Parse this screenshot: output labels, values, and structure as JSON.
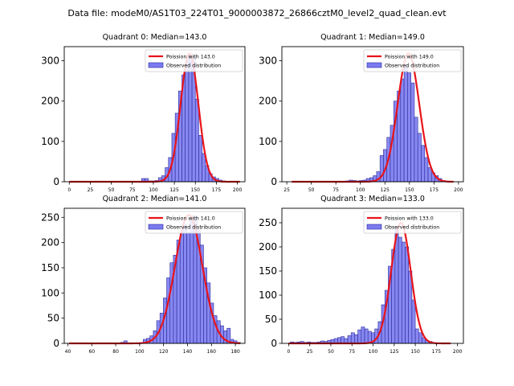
{
  "suptitle": "Data file: modeM0/AS1T03_224T01_9000003872_26866cztM0_level2_quad_clean.evt",
  "colors": {
    "hist_face": "#7b7bf0",
    "hist_edge": "#2b2b9e",
    "curve": "#e8141a",
    "axis": "#000000"
  },
  "chart_data": [
    {
      "type": "bar",
      "title": "Quadrant 0: Median=143.0",
      "legend": [
        "Poission with 143.0",
        "Observed distribution"
      ],
      "legend_loc": "upper right",
      "xlim": [
        -6,
        209
      ],
      "ylim": [
        0,
        335
      ],
      "xticks": [
        0,
        25,
        50,
        75,
        100,
        125,
        150,
        175,
        200
      ],
      "yticks": [
        0,
        100,
        200,
        300
      ],
      "bin_width": 4,
      "bins_start": [
        86,
        90,
        94,
        98,
        102,
        106,
        110,
        114,
        118,
        122,
        126,
        130,
        134,
        138,
        142,
        146,
        150,
        154,
        158,
        162,
        166,
        170,
        174,
        178,
        182
      ],
      "counts": [
        8,
        8,
        2,
        2,
        3,
        10,
        15,
        35,
        60,
        120,
        170,
        225,
        265,
        300,
        315,
        310,
        205,
        115,
        70,
        40,
        20,
        12,
        8,
        4,
        2
      ],
      "curve": {
        "mu": 143,
        "sigma": 10.6,
        "peak": 318,
        "x_range": [
          0,
          203
        ]
      }
    },
    {
      "type": "bar",
      "title": "Quadrant 1: Median=149.0",
      "legend": [
        "Poission with 149.0",
        "Observed distribution"
      ],
      "legend_loc": "upper right",
      "xlim": [
        20,
        205
      ],
      "ylim": [
        0,
        335
      ],
      "xticks": [
        25,
        50,
        75,
        100,
        125,
        150,
        175,
        200
      ],
      "yticks": [
        0,
        100,
        200,
        300
      ],
      "bin_width": 3.5,
      "bins_start": [
        85,
        88.5,
        92,
        95.5,
        99,
        102.5,
        106,
        109.5,
        113,
        116.5,
        120,
        123.5,
        127,
        130.5,
        134,
        137.5,
        141,
        144.5,
        148,
        151.5,
        155,
        158.5,
        162,
        165.5,
        169,
        172.5,
        176,
        179.5,
        183
      ],
      "counts": [
        2,
        4,
        3,
        2,
        3,
        4,
        8,
        10,
        15,
        25,
        65,
        80,
        110,
        140,
        200,
        225,
        255,
        290,
        270,
        245,
        160,
        120,
        90,
        60,
        35,
        22,
        15,
        8,
        3
      ],
      "curve": {
        "mu": 149,
        "sigma": 11.0,
        "peak": 318,
        "x_range": [
          30,
          195
        ]
      }
    },
    {
      "type": "bar",
      "title": "Quadrant 2: Median=141.0",
      "legend": [
        "Poission with 141.0",
        "Observed distribution"
      ],
      "legend_loc": "upper right",
      "xlim": [
        37,
        188
      ],
      "ylim": [
        0,
        268
      ],
      "xticks": [
        40,
        60,
        80,
        100,
        120,
        140,
        160,
        180
      ],
      "yticks": [
        0,
        50,
        100,
        150,
        200,
        250
      ],
      "bin_width": 2.8,
      "bins_start": [
        84,
        86.8,
        103,
        105.8,
        108.6,
        111.4,
        114.2,
        117,
        119.8,
        122.6,
        125.4,
        128.2,
        131,
        133.8,
        136.6,
        139.4,
        142.2,
        145,
        147.8,
        150.6,
        153.4,
        156.2,
        159,
        161.8,
        164.6,
        167.4,
        170.2,
        173,
        175.8,
        178.6,
        181.4
      ],
      "counts": [
        2,
        5,
        8,
        10,
        15,
        25,
        45,
        60,
        90,
        130,
        160,
        175,
        205,
        220,
        235,
        220,
        245,
        250,
        225,
        195,
        150,
        120,
        80,
        55,
        45,
        35,
        25,
        30,
        8,
        5,
        2
      ],
      "curve": {
        "mu": 141,
        "sigma": 11.4,
        "peak": 255,
        "x_range": [
          41,
          184
        ]
      }
    },
    {
      "type": "bar",
      "title": "Quadrant 3: Median=133.0",
      "legend": [
        "Poission with 133.0",
        "Observed distribution"
      ],
      "legend_loc": "upper right",
      "xlim": [
        -8,
        207
      ],
      "ylim": [
        0,
        280
      ],
      "xticks": [
        0,
        25,
        50,
        75,
        100,
        125,
        150,
        175,
        200
      ],
      "yticks": [
        0,
        50,
        100,
        150,
        200,
        250
      ],
      "bin_width": 4,
      "bins_start": [
        2,
        6,
        10,
        14,
        18,
        22,
        26,
        30,
        34,
        38,
        42,
        46,
        50,
        54,
        58,
        62,
        66,
        70,
        74,
        78,
        82,
        86,
        90,
        94,
        98,
        102,
        106,
        110,
        114,
        118,
        122,
        126,
        130,
        134,
        138,
        142,
        146,
        150,
        154,
        158,
        162,
        166,
        170,
        174
      ],
      "counts": [
        3,
        2,
        3,
        4,
        2,
        3,
        2,
        2,
        3,
        5,
        4,
        6,
        8,
        10,
        12,
        14,
        10,
        16,
        22,
        18,
        28,
        34,
        30,
        25,
        22,
        30,
        45,
        80,
        110,
        160,
        195,
        240,
        220,
        210,
        200,
        150,
        90,
        30,
        22,
        12,
        6,
        4,
        2,
        1
      ],
      "curve": {
        "mu": 133,
        "sigma": 11.5,
        "peak": 250,
        "x_range": [
          0,
          192
        ]
      }
    }
  ]
}
